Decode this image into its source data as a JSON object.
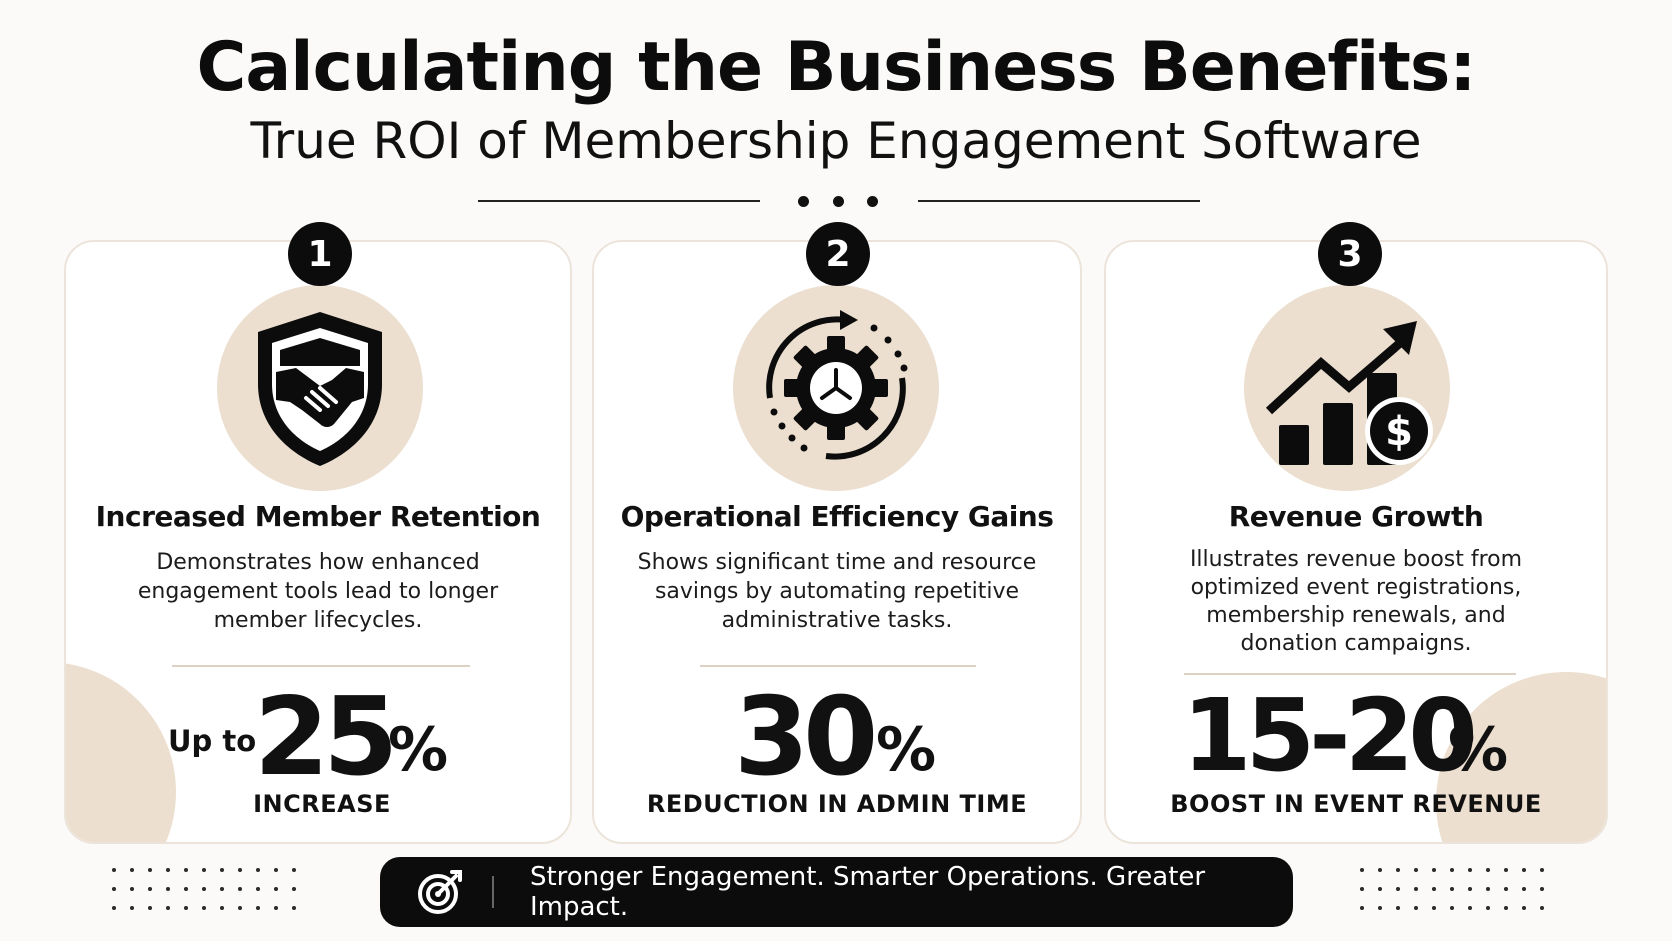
{
  "header": {
    "title": "Calculating the Business Benefits:",
    "subtitle": "True ROI of Membership Engagement Software"
  },
  "cards": [
    {
      "number": "1",
      "icon": "handshake-shield-icon",
      "title": "Increased Member Retention",
      "description_lines": [
        "Demonstrates how enhanced",
        "engagement tools lead to longer",
        "member lifecycles."
      ],
      "stat_prefix": "Up to",
      "stat_value": "25",
      "stat_unit": "%",
      "stat_label": "INCREASE"
    },
    {
      "number": "2",
      "icon": "gear-clock-icon",
      "title": "Operational Efficiency Gains",
      "description_lines": [
        "Shows significant time and resource",
        "savings by automating repetitive",
        "administrative tasks."
      ],
      "stat_prefix": "",
      "stat_value": "30",
      "stat_unit": "%",
      "stat_label": "REDUCTION IN ADMIN TIME"
    },
    {
      "number": "3",
      "icon": "revenue-growth-chart-icon",
      "title": "Revenue Growth",
      "description_lines": [
        "Illustrates revenue boost from",
        "optimized event registrations,",
        "membership renewals, and",
        "donation campaigns."
      ],
      "stat_prefix": "",
      "stat_value": "15-20",
      "stat_unit": "%",
      "stat_label": "BOOST IN EVENT REVENUE"
    }
  ],
  "banner": {
    "icon": "target-icon",
    "text": "Stronger Engagement. Smarter Operations. Greater Impact."
  },
  "colors": {
    "background": "#fbfaf8",
    "accent_beige": "#ecdfcf",
    "dark": "#0c0c0c"
  }
}
